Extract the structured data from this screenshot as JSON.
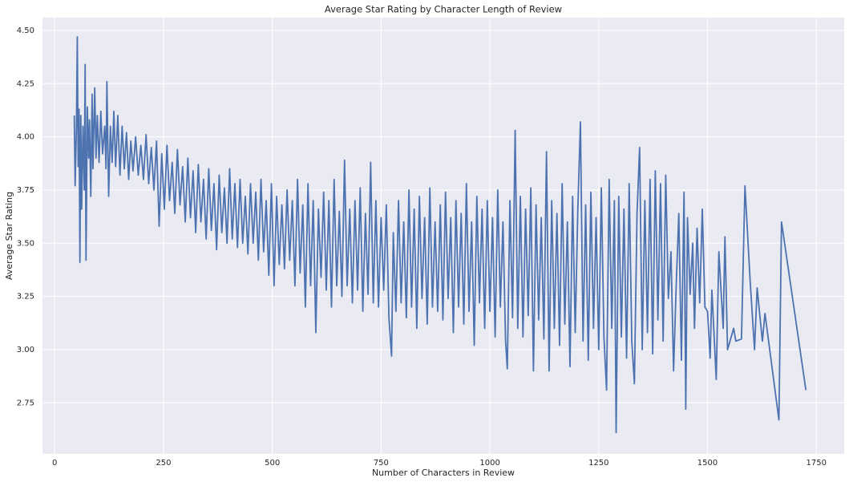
{
  "chart_data": {
    "type": "line",
    "title": "Average Star Rating by Character Length of Review",
    "xlabel": "Number of Characters in Review",
    "ylabel": "Average Star Rating",
    "color": "#4c72b0",
    "grid": true,
    "xlim": [
      -28,
      1814
    ],
    "ylim": [
      2.51,
      4.56
    ],
    "xticks": [
      0,
      250,
      500,
      750,
      1000,
      1250,
      1500,
      1750
    ],
    "yticks": [
      2.75,
      {
        "value": 3,
        "label": "3.00"
      },
      3.25,
      {
        "value": 3.5,
        "label": "3.50"
      },
      3.75,
      {
        "value": 4,
        "label": "4.00"
      },
      4.25,
      {
        "value": 4.5,
        "label": "4.50"
      }
    ],
    "x": [
      45,
      47,
      50,
      52,
      54,
      56,
      58,
      60,
      62,
      65,
      68,
      70,
      72,
      75,
      78,
      80,
      83,
      86,
      88,
      92,
      95,
      98,
      102,
      106,
      110,
      115,
      118,
      120,
      124,
      128,
      132,
      136,
      140,
      145,
      150,
      155,
      160,
      165,
      170,
      175,
      180,
      186,
      192,
      198,
      204,
      210,
      216,
      222,
      228,
      234,
      240,
      246,
      252,
      258,
      264,
      270,
      276,
      282,
      288,
      294,
      300,
      306,
      312,
      318,
      324,
      330,
      336,
      342,
      348,
      354,
      360,
      366,
      372,
      378,
      384,
      390,
      396,
      402,
      408,
      414,
      420,
      426,
      432,
      438,
      444,
      450,
      456,
      462,
      468,
      474,
      480,
      486,
      492,
      498,
      504,
      510,
      516,
      522,
      528,
      534,
      540,
      546,
      552,
      558,
      564,
      570,
      576,
      582,
      588,
      594,
      600,
      606,
      612,
      618,
      624,
      630,
      636,
      642,
      648,
      654,
      660,
      666,
      672,
      678,
      684,
      690,
      696,
      702,
      708,
      714,
      720,
      726,
      732,
      738,
      744,
      750,
      756,
      762,
      768,
      774,
      778,
      784,
      790,
      796,
      802,
      808,
      814,
      820,
      826,
      832,
      838,
      844,
      850,
      856,
      862,
      868,
      874,
      880,
      886,
      892,
      898,
      904,
      910,
      916,
      922,
      928,
      934,
      940,
      946,
      952,
      958,
      964,
      970,
      976,
      982,
      988,
      994,
      1000,
      1006,
      1012,
      1018,
      1024,
      1030,
      1036,
      1040,
      1046,
      1052,
      1058,
      1064,
      1070,
      1076,
      1082,
      1088,
      1094,
      1100,
      1106,
      1112,
      1118,
      1124,
      1130,
      1136,
      1142,
      1148,
      1154,
      1160,
      1166,
      1172,
      1178,
      1184,
      1190,
      1196,
      1202,
      1208,
      1214,
      1220,
      1226,
      1232,
      1238,
      1244,
      1250,
      1256,
      1262,
      1268,
      1274,
      1280,
      1286,
      1290,
      1296,
      1302,
      1308,
      1314,
      1320,
      1326,
      1332,
      1338,
      1344,
      1350,
      1356,
      1362,
      1368,
      1374,
      1380,
      1386,
      1392,
      1398,
      1404,
      1410,
      1416,
      1422,
      1428,
      1434,
      1440,
      1446,
      1450,
      1454,
      1460,
      1466,
      1470,
      1476,
      1482,
      1488,
      1494,
      1500,
      1506,
      1510,
      1520,
      1526,
      1536,
      1540,
      1546,
      1560,
      1565,
      1578,
      1586,
      1598,
      1608,
      1614,
      1626,
      1632,
      1664,
      1670,
      1726
    ],
    "values": [
      4.1,
      3.77,
      4.05,
      4.47,
      3.86,
      4.13,
      3.41,
      4.1,
      3.66,
      4.05,
      3.75,
      4.34,
      3.42,
      4.14,
      3.9,
      4.08,
      3.72,
      4.2,
      3.85,
      4.23,
      3.9,
      4.1,
      3.88,
      4.12,
      3.92,
      4.05,
      3.85,
      4.26,
      3.72,
      4.05,
      3.88,
      4.12,
      3.86,
      4.1,
      3.82,
      4.05,
      3.85,
      4.02,
      3.8,
      3.98,
      3.84,
      4.0,
      3.82,
      3.96,
      3.8,
      4.01,
      3.78,
      3.95,
      3.75,
      3.98,
      3.58,
      3.92,
      3.66,
      3.96,
      3.7,
      3.88,
      3.64,
      3.94,
      3.68,
      3.86,
      3.6,
      3.9,
      3.62,
      3.84,
      3.55,
      3.87,
      3.6,
      3.8,
      3.52,
      3.85,
      3.56,
      3.78,
      3.47,
      3.82,
      3.55,
      3.76,
      3.5,
      3.85,
      3.52,
      3.78,
      3.48,
      3.8,
      3.5,
      3.72,
      3.45,
      3.78,
      3.5,
      3.74,
      3.42,
      3.8,
      3.46,
      3.7,
      3.35,
      3.78,
      3.3,
      3.72,
      3.4,
      3.68,
      3.38,
      3.75,
      3.42,
      3.7,
      3.3,
      3.8,
      3.36,
      3.68,
      3.2,
      3.78,
      3.3,
      3.7,
      3.08,
      3.66,
      3.34,
      3.74,
      3.28,
      3.7,
      3.2,
      3.8,
      3.3,
      3.65,
      3.25,
      3.89,
      3.3,
      3.66,
      3.22,
      3.7,
      3.28,
      3.76,
      3.18,
      3.64,
      3.26,
      3.88,
      3.22,
      3.7,
      3.2,
      3.62,
      3.28,
      3.68,
      3.15,
      2.97,
      3.55,
      3.18,
      3.7,
      3.22,
      3.6,
      3.15,
      3.75,
      3.2,
      3.66,
      3.1,
      3.72,
      3.24,
      3.62,
      3.12,
      3.76,
      3.2,
      3.6,
      3.18,
      3.68,
      3.14,
      3.74,
      3.24,
      3.62,
      3.08,
      3.7,
      3.2,
      3.64,
      3.12,
      3.78,
      3.18,
      3.6,
      3.02,
      3.72,
      3.22,
      3.66,
      3.1,
      3.7,
      3.18,
      3.62,
      3.06,
      3.75,
      3.2,
      3.6,
      3.04,
      2.91,
      3.7,
      3.15,
      4.03,
      3.1,
      3.72,
      3.06,
      3.66,
      3.16,
      3.76,
      2.9,
      3.68,
      3.14,
      3.62,
      3.05,
      3.93,
      2.9,
      3.7,
      3.1,
      3.64,
      3.02,
      3.78,
      3.12,
      3.6,
      2.92,
      3.72,
      3.08,
      3.66,
      4.07,
      3.04,
      3.68,
      2.95,
      3.74,
      3.1,
      3.62,
      3.0,
      3.76,
      3.06,
      2.81,
      3.8,
      3.1,
      3.7,
      2.61,
      3.72,
      3.06,
      3.66,
      2.96,
      3.78,
      3.04,
      2.84,
      3.64,
      3.95,
      3.0,
      3.7,
      3.08,
      3.8,
      2.98,
      3.84,
      3.14,
      3.78,
      3.04,
      3.82,
      3.24,
      3.46,
      2.9,
      3.3,
      3.64,
      2.95,
      3.74,
      2.72,
      3.62,
      3.26,
      3.5,
      3.1,
      3.57,
      3.22,
      3.66,
      3.2,
      3.18,
      2.96,
      3.28,
      2.86,
      3.46,
      3.1,
      3.53,
      3.0,
      3.1,
      3.04,
      3.05,
      3.77,
      3.32,
      3.0,
      3.29,
      3.04,
      3.17,
      2.67,
      3.6,
      2.81
    ]
  }
}
